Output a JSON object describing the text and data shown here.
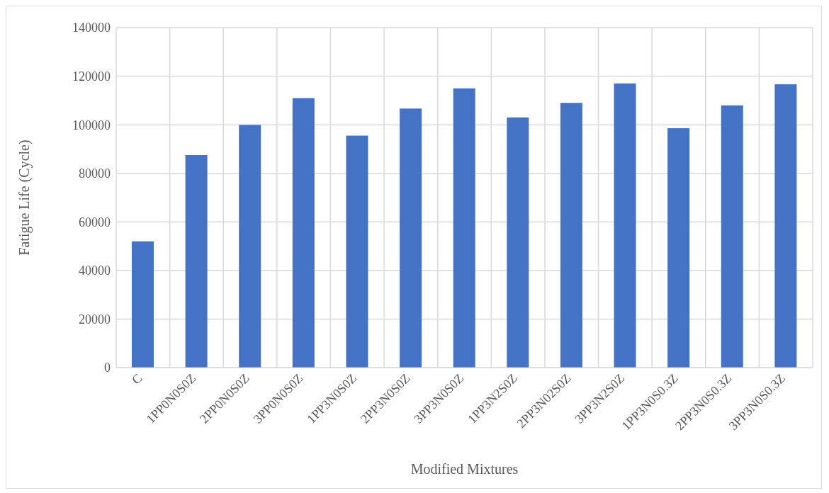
{
  "chart_data": {
    "type": "bar",
    "xlabel": "Modified Mixtures",
    "ylabel": "Fatigue Life (Cycle)",
    "categories": [
      "C",
      "1PP0N0S0Z",
      "2PP0N0S0Z",
      "3PP0N0S0Z",
      "1PP3N0S0Z",
      "2PP3N0S0Z",
      "3PP3N0S0Z",
      "1PP3N2S0Z",
      "2PP3N02S0Z",
      "3PP3N2S0Z",
      "1PP3N0S0.3Z",
      "2PP3N0S0.3Z",
      "3PP3N0S0.3Z"
    ],
    "values": [
      52000,
      87500,
      100000,
      111000,
      95500,
      106700,
      115000,
      103000,
      109000,
      117000,
      98600,
      108000,
      116700
    ],
    "color": "#4472c4",
    "ylim": [
      0,
      140000
    ],
    "yticks": [
      0,
      20000,
      40000,
      60000,
      80000,
      100000,
      120000,
      140000
    ],
    "grid": true
  }
}
